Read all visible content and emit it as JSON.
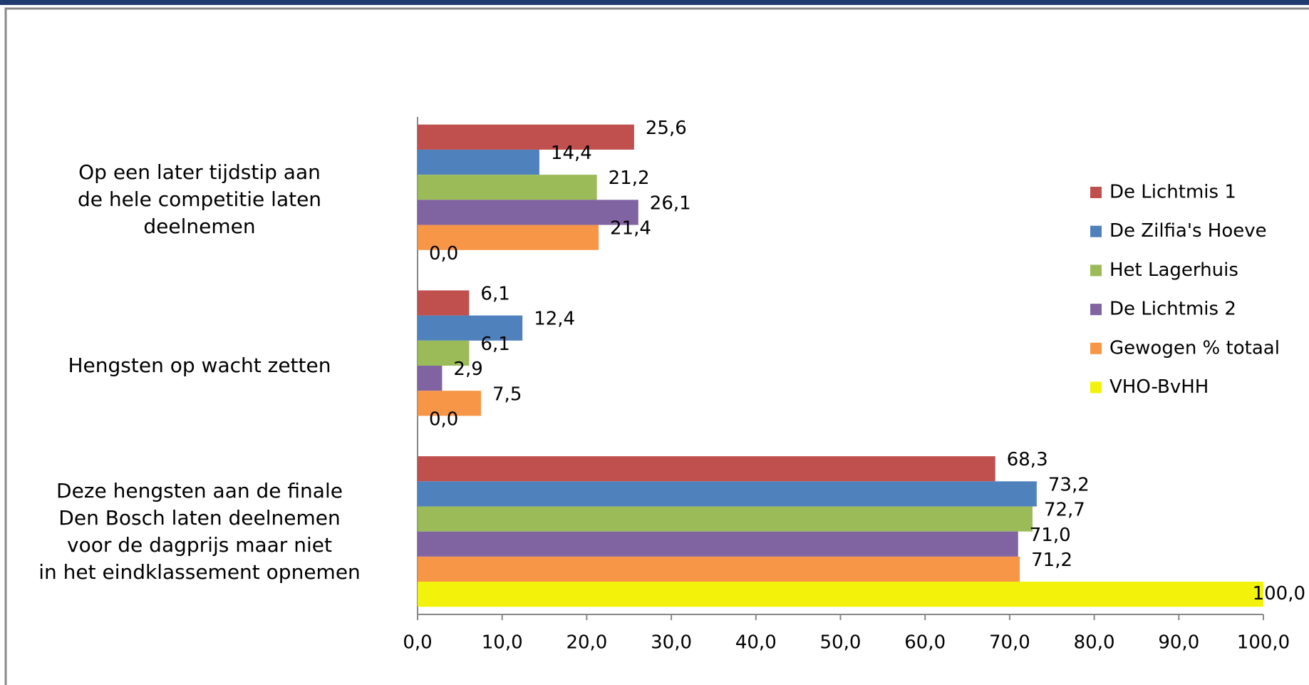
{
  "chart_data": {
    "type": "bar",
    "orientation": "horizontal",
    "categories": [
      "Op een later tijdstip aan\nde hele competitie laten\ndeelnemen",
      "Hengsten op wacht zetten",
      "Deze hengsten aan de finale\nDen Bosch laten deelnemen\nvoor de dagprijs maar niet\nin het eindklassement opnemen"
    ],
    "series": [
      {
        "name": "De Lichtmis 1",
        "color": "#c0504d",
        "values": [
          25.6,
          6.1,
          68.3
        ],
        "value_labels": [
          "25,6",
          "6,1",
          "68,3"
        ]
      },
      {
        "name": "De Zilfia's Hoeve",
        "color": "#4f81bd",
        "values": [
          14.4,
          12.4,
          73.2
        ],
        "value_labels": [
          "14,4",
          "12,4",
          "73,2"
        ]
      },
      {
        "name": "Het Lagerhuis",
        "color": "#9bbb59",
        "values": [
          21.2,
          6.1,
          72.7
        ],
        "value_labels": [
          "21,2",
          "6,1",
          "72,7"
        ]
      },
      {
        "name": "De Lichtmis 2",
        "color": "#8064a2",
        "values": [
          26.1,
          2.9,
          71.0
        ],
        "value_labels": [
          "26,1",
          "2,9",
          "71,0"
        ]
      },
      {
        "name": "Gewogen % totaal",
        "color": "#f79646",
        "values": [
          21.4,
          7.5,
          71.2
        ],
        "value_labels": [
          "21,4",
          "7,5",
          "71,2"
        ]
      },
      {
        "name": "VHO-BvHH",
        "color": "#f2f20a",
        "values": [
          0.0,
          0.0,
          100.0
        ],
        "value_labels": [
          "0,0",
          "0,0",
          "100,0"
        ]
      }
    ],
    "xlim": [
      0,
      100
    ],
    "xticks": [
      {
        "value": 0,
        "label": "0,0"
      },
      {
        "value": 10,
        "label": "10,0"
      },
      {
        "value": 20,
        "label": "20,0"
      },
      {
        "value": 30,
        "label": "30,0"
      },
      {
        "value": 40,
        "label": "40,0"
      },
      {
        "value": 50,
        "label": "50,0"
      },
      {
        "value": 60,
        "label": "60,0"
      },
      {
        "value": 70,
        "label": "70,0"
      },
      {
        "value": 80,
        "label": "80,0"
      },
      {
        "value": 90,
        "label": "90,0"
      },
      {
        "value": 100,
        "label": "100,0"
      }
    ],
    "grid": false,
    "legend": "right"
  }
}
